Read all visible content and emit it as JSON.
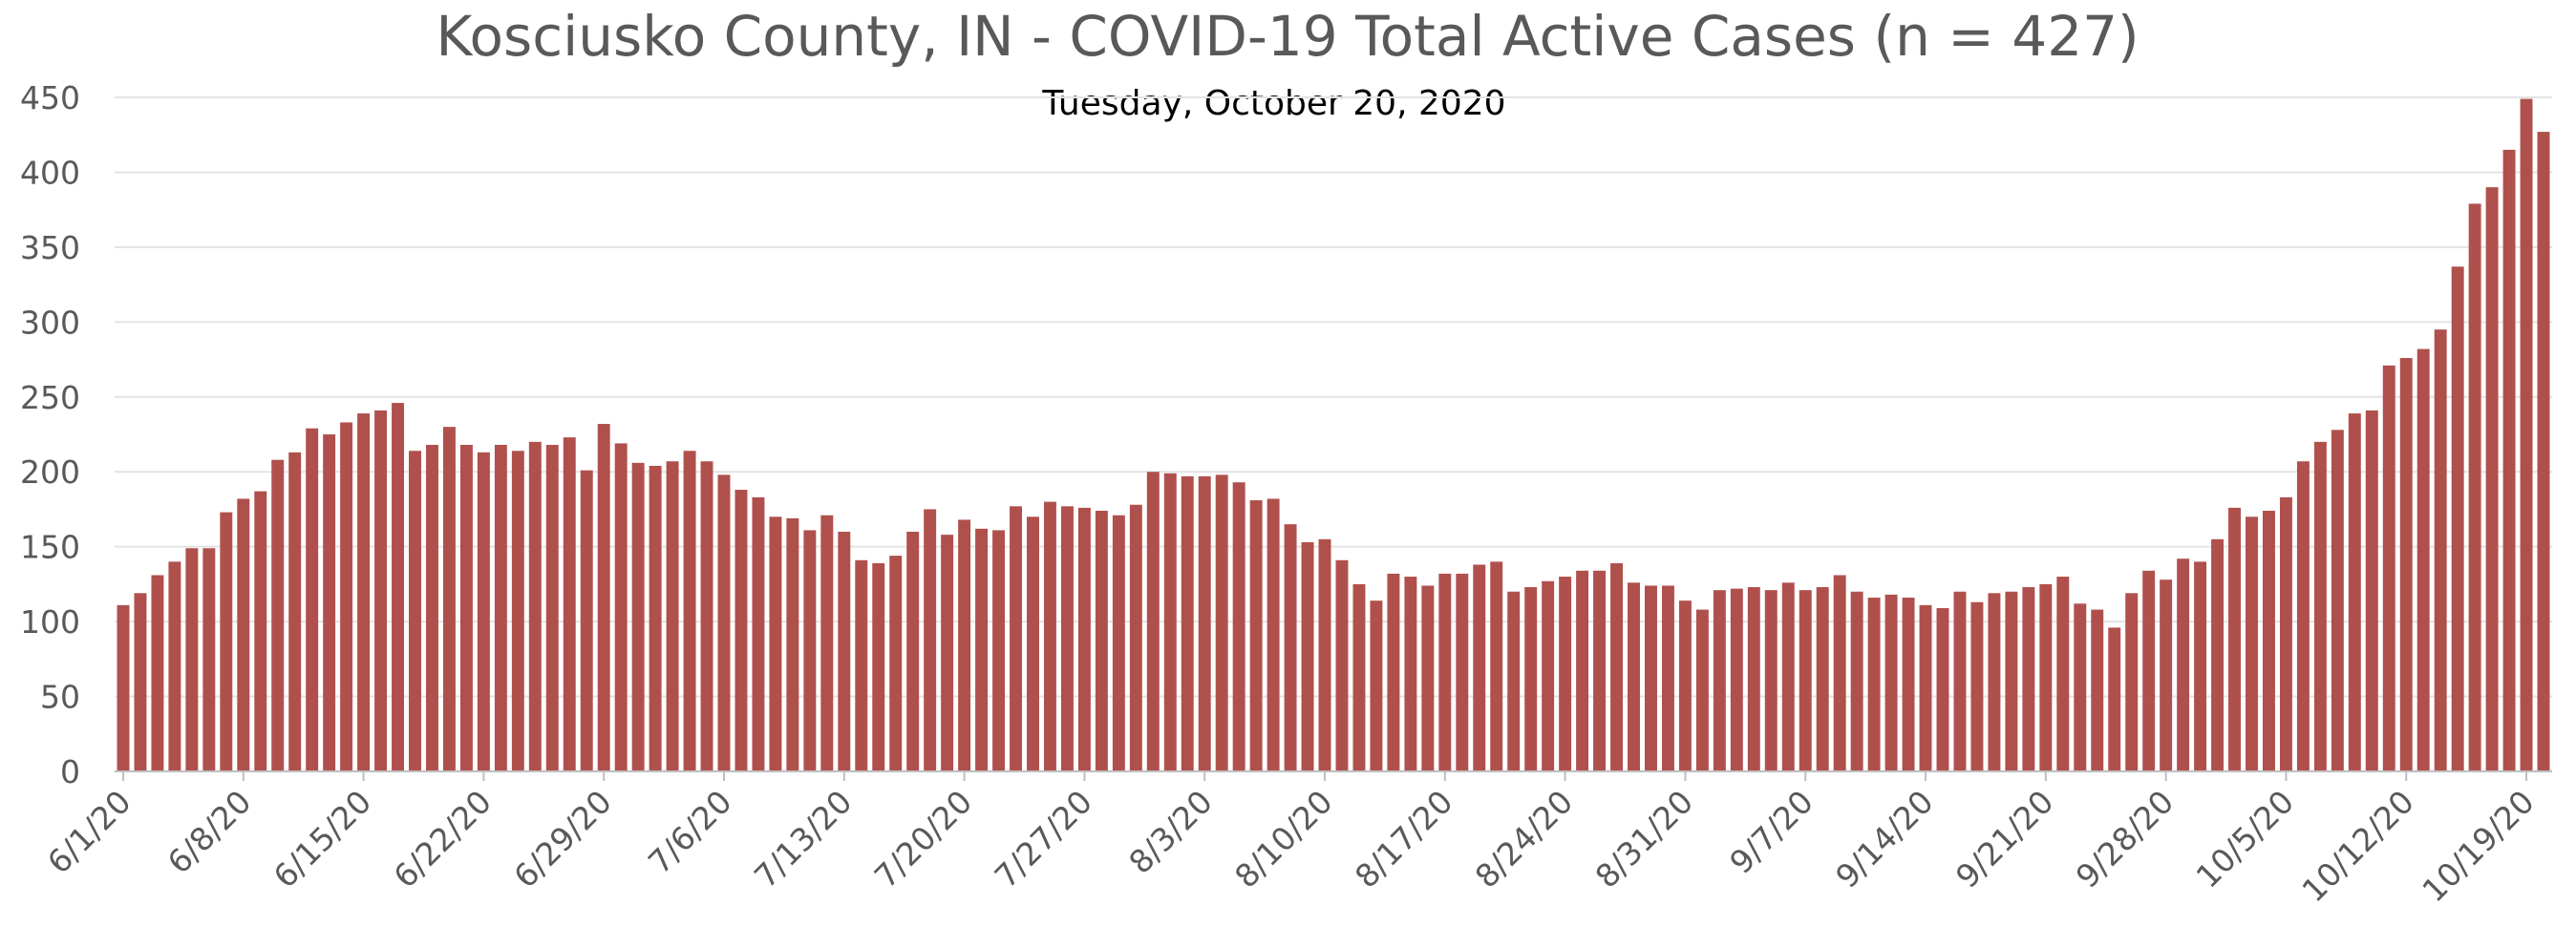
{
  "chart_data": {
    "type": "bar",
    "title": "Kosciusko County, IN - COVID-19 Total Active Cases (n = 427)",
    "subtitle": "Tuesday, October 20, 2020",
    "xlabel": "",
    "ylabel": "",
    "ylim": [
      0,
      450
    ],
    "yticks": [
      0,
      50,
      100,
      150,
      200,
      250,
      300,
      350,
      400,
      450
    ],
    "grid": true,
    "legend": "none",
    "bar_color": "#b0504c",
    "x_tick_labels": [
      "6/1/20",
      "6/8/20",
      "6/15/20",
      "6/22/20",
      "6/29/20",
      "7/6/20",
      "7/13/20",
      "7/20/20",
      "7/27/20",
      "8/3/20",
      "8/10/20",
      "8/17/20",
      "8/24/20",
      "8/31/20",
      "9/7/20",
      "9/14/20",
      "9/21/20",
      "9/28/20",
      "10/5/20",
      "10/12/20",
      "10/19/20"
    ],
    "categories": [
      "6/1/20",
      "6/2/20",
      "6/3/20",
      "6/4/20",
      "6/5/20",
      "6/6/20",
      "6/7/20",
      "6/8/20",
      "6/9/20",
      "6/10/20",
      "6/11/20",
      "6/12/20",
      "6/13/20",
      "6/14/20",
      "6/15/20",
      "6/16/20",
      "6/17/20",
      "6/18/20",
      "6/19/20",
      "6/20/20",
      "6/21/20",
      "6/22/20",
      "6/23/20",
      "6/24/20",
      "6/25/20",
      "6/26/20",
      "6/27/20",
      "6/28/20",
      "6/29/20",
      "6/30/20",
      "7/1/20",
      "7/2/20",
      "7/3/20",
      "7/4/20",
      "7/5/20",
      "7/6/20",
      "7/7/20",
      "7/8/20",
      "7/9/20",
      "7/10/20",
      "7/11/20",
      "7/12/20",
      "7/13/20",
      "7/14/20",
      "7/15/20",
      "7/16/20",
      "7/17/20",
      "7/18/20",
      "7/19/20",
      "7/20/20",
      "7/21/20",
      "7/22/20",
      "7/23/20",
      "7/24/20",
      "7/25/20",
      "7/26/20",
      "7/27/20",
      "7/28/20",
      "7/29/20",
      "7/30/20",
      "7/31/20",
      "8/1/20",
      "8/2/20",
      "8/3/20",
      "8/4/20",
      "8/5/20",
      "8/6/20",
      "8/7/20",
      "8/8/20",
      "8/9/20",
      "8/10/20",
      "8/11/20",
      "8/12/20",
      "8/13/20",
      "8/14/20",
      "8/15/20",
      "8/16/20",
      "8/17/20",
      "8/18/20",
      "8/19/20",
      "8/20/20",
      "8/21/20",
      "8/22/20",
      "8/23/20",
      "8/24/20",
      "8/25/20",
      "8/26/20",
      "8/27/20",
      "8/28/20",
      "8/29/20",
      "8/30/20",
      "8/31/20",
      "9/1/20",
      "9/2/20",
      "9/3/20",
      "9/4/20",
      "9/5/20",
      "9/6/20",
      "9/7/20",
      "9/8/20",
      "9/9/20",
      "9/10/20",
      "9/11/20",
      "9/12/20",
      "9/13/20",
      "9/14/20",
      "9/15/20",
      "9/16/20",
      "9/17/20",
      "9/18/20",
      "9/19/20",
      "9/20/20",
      "9/21/20",
      "9/22/20",
      "9/23/20",
      "9/24/20",
      "9/25/20",
      "9/26/20",
      "9/27/20",
      "9/28/20",
      "9/29/20",
      "9/30/20",
      "10/1/20",
      "10/2/20",
      "10/3/20",
      "10/4/20",
      "10/5/20",
      "10/6/20",
      "10/7/20",
      "10/8/20",
      "10/9/20",
      "10/10/20",
      "10/11/20",
      "10/12/20",
      "10/13/20",
      "10/14/20",
      "10/15/20",
      "10/16/20",
      "10/17/20",
      "10/18/20",
      "10/19/20",
      "10/20/20"
    ],
    "values": [
      111,
      119,
      131,
      140,
      149,
      149,
      173,
      182,
      187,
      208,
      213,
      229,
      225,
      233,
      239,
      241,
      246,
      214,
      218,
      230,
      218,
      213,
      218,
      214,
      220,
      218,
      223,
      201,
      232,
      219,
      206,
      204,
      207,
      214,
      207,
      198,
      188,
      183,
      170,
      169,
      161,
      171,
      160,
      141,
      139,
      144,
      160,
      175,
      158,
      168,
      162,
      161,
      177,
      170,
      180,
      177,
      176,
      174,
      171,
      178,
      200,
      199,
      197,
      197,
      198,
      193,
      181,
      182,
      165,
      153,
      155,
      141,
      125,
      114,
      132,
      130,
      124,
      132,
      132,
      138,
      140,
      120,
      123,
      127,
      130,
      134,
      134,
      139,
      126,
      124,
      124,
      114,
      108,
      121,
      122,
      123,
      121,
      126,
      121,
      123,
      131,
      120,
      116,
      118,
      116,
      111,
      109,
      120,
      113,
      119,
      120,
      123,
      125,
      130,
      112,
      108,
      96,
      119,
      134,
      128,
      142,
      140,
      155,
      176,
      170,
      174,
      183,
      207,
      220,
      228,
      239,
      241,
      271,
      276,
      282,
      295,
      337,
      379,
      390,
      415,
      449,
      427
    ]
  }
}
